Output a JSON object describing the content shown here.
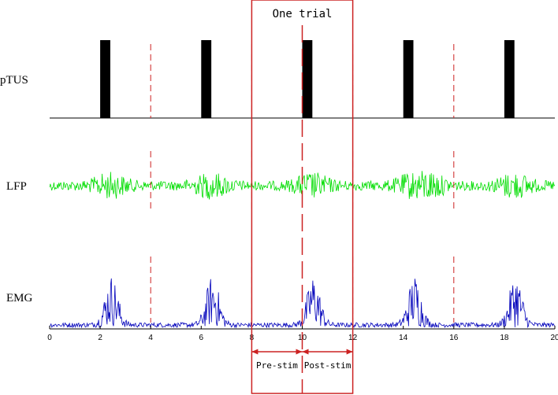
{
  "labels": {
    "ptus": "pTUS",
    "lfp": "LFP",
    "emg": "EMG",
    "trial": "One trial",
    "pre_stim": "Pre-stim",
    "post_stim": "Post-stim"
  },
  "time_axis": {
    "min": 0,
    "max": 20,
    "ticks": [
      "0",
      "2",
      "4",
      "6",
      "8",
      "10",
      "12",
      "14",
      "16",
      "18",
      "20"
    ]
  },
  "pulses": [
    {
      "start": 2.0,
      "end": 2.4
    },
    {
      "start": 6.0,
      "end": 6.4
    },
    {
      "start": 10.0,
      "end": 10.4
    },
    {
      "start": 14.0,
      "end": 14.4
    },
    {
      "start": 18.0,
      "end": 18.4
    }
  ],
  "trial_boundaries": [
    4,
    8,
    12,
    16
  ],
  "stim_onset_line": 10,
  "trial_window": {
    "start": 8,
    "end": 12
  },
  "colors": {
    "pulse": "#000000",
    "lfp": "#00dd00",
    "emg": "#0000bb",
    "boundary": "#cc2222",
    "trial_box": "#cc2222"
  }
}
